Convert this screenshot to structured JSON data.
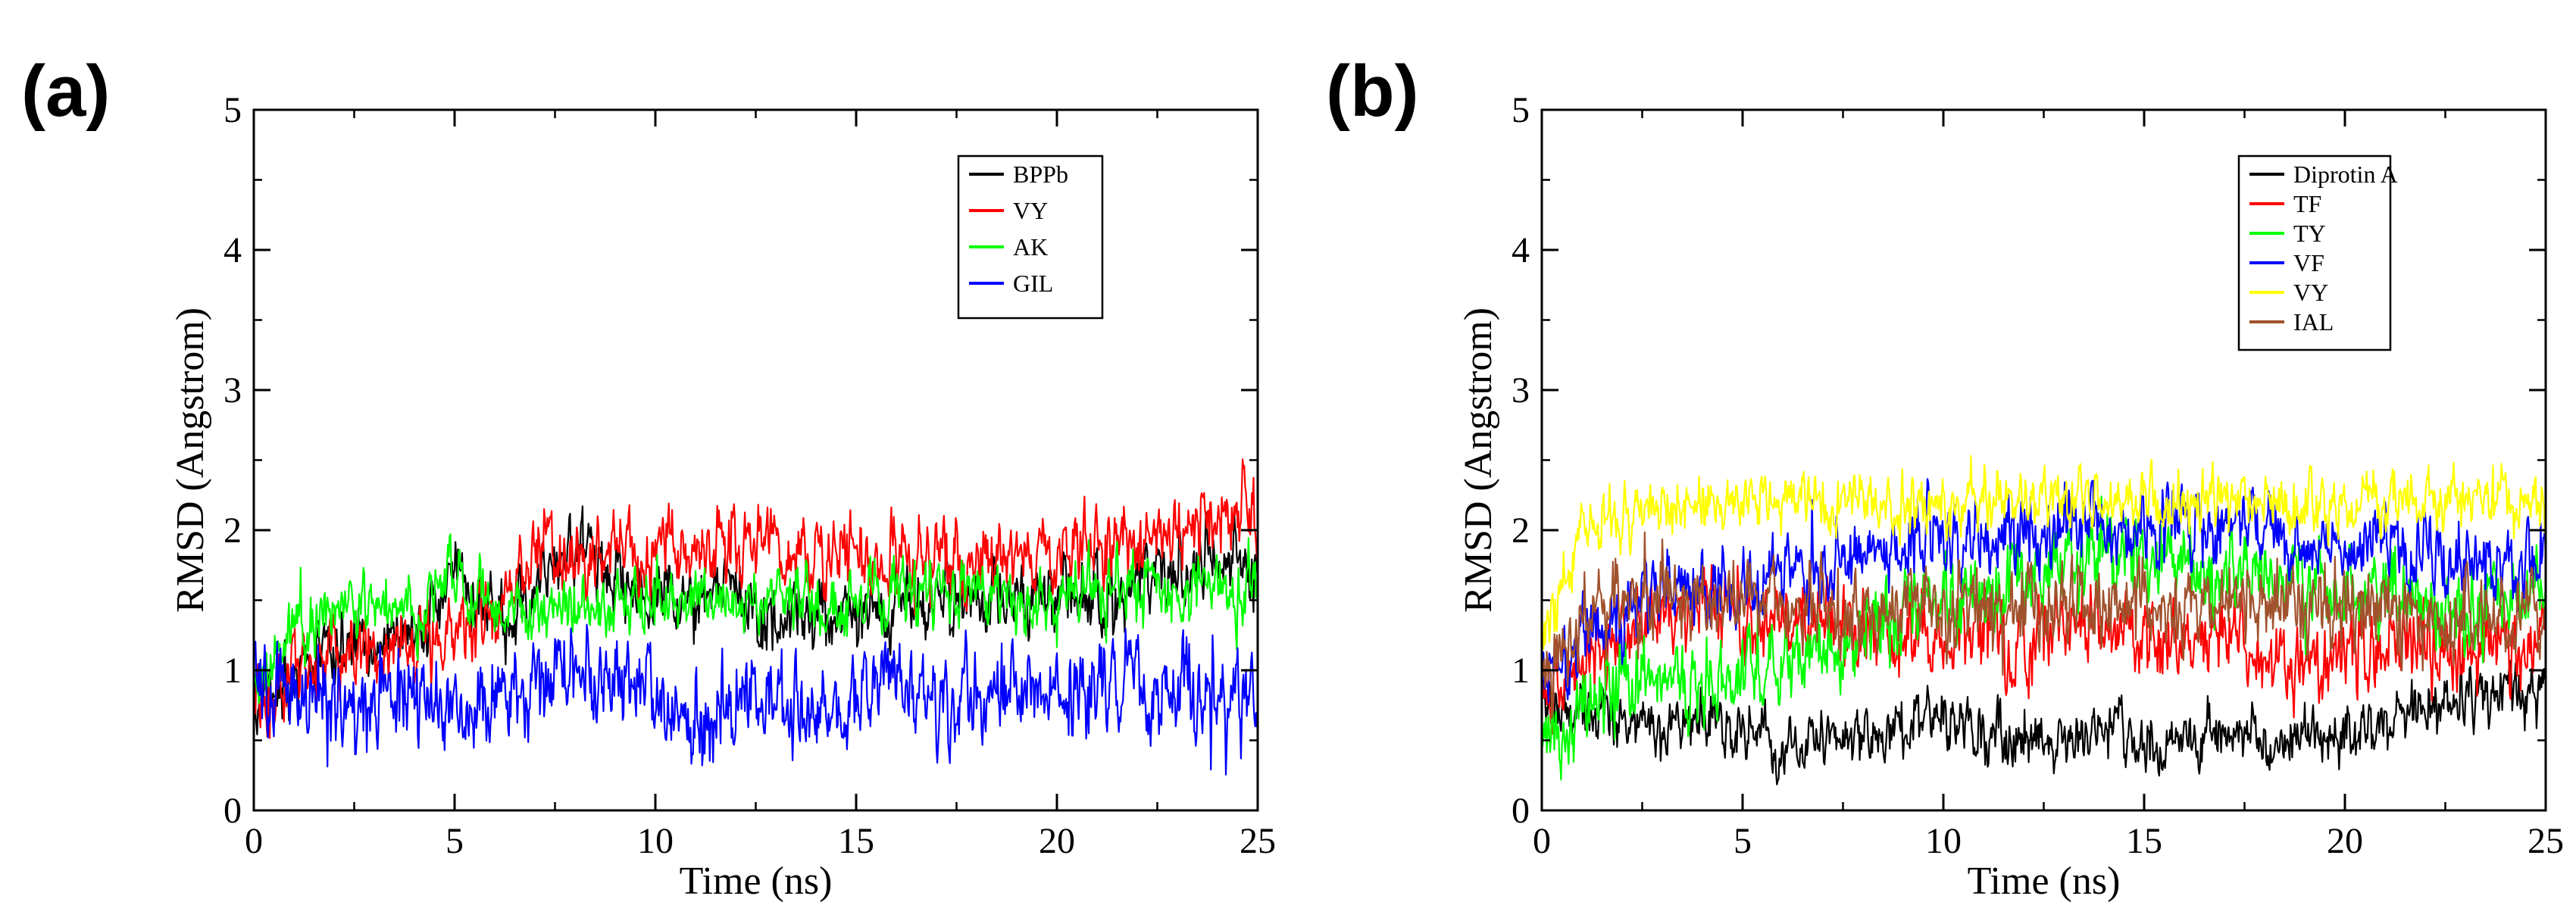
{
  "figure": {
    "panels": [
      "(a)",
      "(b)"
    ]
  },
  "chart_data": [
    {
      "type": "line",
      "panel": "(a)",
      "title": "",
      "xlabel": "Time (ns)",
      "ylabel": "RMSD (Angstrom)",
      "xlim": [
        0,
        25
      ],
      "ylim": [
        0,
        5
      ],
      "xticks": [
        0,
        5,
        10,
        15,
        20,
        25
      ],
      "yticks": [
        0,
        1,
        2,
        3,
        4,
        5
      ],
      "grid": false,
      "legend_position": "top-right",
      "x": [
        0,
        1,
        2,
        3,
        4,
        5,
        6,
        7,
        8,
        9,
        10,
        11,
        12,
        13,
        14,
        15,
        16,
        17,
        18,
        19,
        20,
        21,
        22,
        23,
        24,
        25
      ],
      "series": [
        {
          "name": "BPPb",
          "color": "#000000",
          "noise": 0.12,
          "values": [
            0.8,
            0.95,
            1.1,
            1.15,
            1.2,
            1.75,
            1.4,
            1.6,
            1.9,
            1.65,
            1.55,
            1.5,
            1.55,
            1.4,
            1.4,
            1.45,
            1.5,
            1.45,
            1.5,
            1.5,
            1.55,
            1.5,
            1.6,
            1.7,
            1.75,
            1.8
          ]
        },
        {
          "name": "VY",
          "color": "#ff0000",
          "noise": 0.13,
          "values": [
            0.8,
            1.0,
            1.1,
            1.15,
            1.2,
            1.25,
            1.4,
            1.85,
            1.9,
            1.85,
            1.85,
            1.9,
            1.85,
            1.8,
            1.85,
            1.8,
            1.8,
            1.85,
            1.75,
            1.85,
            1.85,
            1.9,
            1.85,
            2.0,
            2.1,
            2.2
          ]
        },
        {
          "name": "AK",
          "color": "#00ff00",
          "noise": 0.11,
          "values": [
            0.9,
            1.3,
            1.45,
            1.5,
            1.45,
            1.7,
            1.5,
            1.4,
            1.45,
            1.45,
            1.45,
            1.5,
            1.5,
            1.55,
            1.5,
            1.5,
            1.55,
            1.6,
            1.55,
            1.5,
            1.55,
            1.6,
            1.55,
            1.6,
            1.55,
            1.55
          ]
        },
        {
          "name": "GIL",
          "color": "#0000ff",
          "noise": 0.16,
          "values": [
            1.0,
            0.8,
            0.75,
            0.8,
            0.9,
            0.75,
            0.8,
            0.95,
            1.0,
            0.9,
            0.85,
            0.65,
            0.7,
            0.85,
            0.65,
            0.75,
            1.0,
            0.8,
            0.75,
            0.9,
            0.75,
            0.85,
            0.9,
            0.8,
            0.95,
            0.85
          ]
        }
      ]
    },
    {
      "type": "line",
      "panel": "(b)",
      "title": "",
      "xlabel": "Time (ns)",
      "ylabel": "RMSD (Angstrom)",
      "xlim": [
        0,
        25
      ],
      "ylim": [
        0,
        5
      ],
      "xticks": [
        0,
        5,
        10,
        15,
        20,
        25
      ],
      "yticks": [
        0,
        1,
        2,
        3,
        4,
        5
      ],
      "grid": false,
      "legend_position": "top-right",
      "x": [
        0,
        1,
        2,
        3,
        4,
        5,
        6,
        7,
        8,
        9,
        10,
        11,
        12,
        13,
        14,
        15,
        16,
        17,
        18,
        19,
        20,
        21,
        22,
        23,
        24,
        25
      ],
      "series": [
        {
          "name": "Diprotin A",
          "color": "#000000",
          "noise": 0.1,
          "values": [
            0.9,
            0.7,
            0.65,
            0.55,
            0.6,
            0.55,
            0.5,
            0.5,
            0.55,
            0.6,
            0.75,
            0.5,
            0.5,
            0.5,
            0.55,
            0.5,
            0.5,
            0.55,
            0.45,
            0.55,
            0.55,
            0.6,
            0.7,
            0.8,
            0.85,
            0.95
          ]
        },
        {
          "name": "TF",
          "color": "#ff0000",
          "noise": 0.14,
          "values": [
            0.8,
            1.1,
            1.3,
            1.4,
            1.45,
            1.3,
            1.3,
            1.25,
            1.3,
            1.15,
            1.2,
            1.25,
            1.2,
            1.3,
            1.25,
            1.15,
            1.2,
            1.2,
            1.1,
            1.05,
            1.1,
            1.15,
            1.15,
            1.2,
            1.2,
            1.15
          ]
        },
        {
          "name": "TY",
          "color": "#00ff00",
          "noise": 0.14,
          "values": [
            0.5,
            0.7,
            0.9,
            0.85,
            0.95,
            1.0,
            1.05,
            1.15,
            1.3,
            1.45,
            1.5,
            1.55,
            1.6,
            1.75,
            1.85,
            1.85,
            1.8,
            1.7,
            1.65,
            1.6,
            1.6,
            1.55,
            1.5,
            1.45,
            1.5,
            1.5
          ]
        },
        {
          "name": "VF",
          "color": "#0000ff",
          "noise": 0.13,
          "values": [
            0.9,
            1.2,
            1.45,
            1.55,
            1.6,
            1.6,
            1.65,
            1.7,
            1.8,
            1.9,
            1.95,
            1.9,
            1.95,
            2.0,
            2.05,
            2.05,
            2.0,
            2.05,
            2.0,
            1.9,
            1.85,
            1.85,
            1.8,
            1.8,
            1.75,
            1.75
          ]
        },
        {
          "name": "VY",
          "color": "#ffff00",
          "noise": 0.1,
          "values": [
            1.2,
            2.0,
            2.1,
            2.15,
            2.2,
            2.2,
            2.25,
            2.2,
            2.2,
            2.2,
            2.2,
            2.2,
            2.25,
            2.25,
            2.2,
            2.2,
            2.2,
            2.25,
            2.2,
            2.2,
            2.2,
            2.2,
            2.2,
            2.2,
            2.2,
            2.2
          ]
        },
        {
          "name": "IAL",
          "color": "#a0522d",
          "noise": 0.14,
          "values": [
            0.9,
            1.35,
            1.5,
            1.55,
            1.5,
            1.5,
            1.45,
            1.4,
            1.45,
            1.45,
            1.4,
            1.45,
            1.45,
            1.45,
            1.4,
            1.45,
            1.4,
            1.45,
            1.45,
            1.45,
            1.4,
            1.4,
            1.3,
            1.4,
            1.4,
            1.45
          ]
        }
      ]
    }
  ]
}
